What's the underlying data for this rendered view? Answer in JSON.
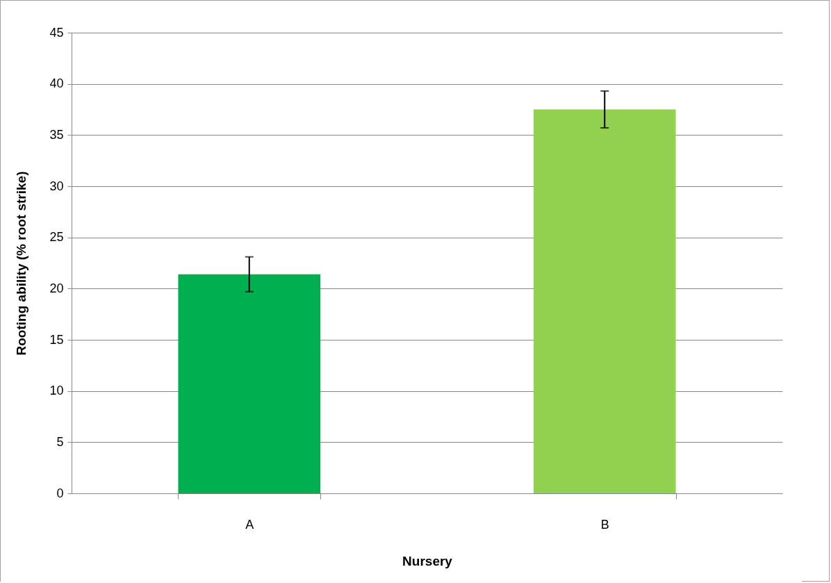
{
  "chart_data": {
    "type": "bar",
    "xlabel": "Nursery",
    "ylabel": "Rooting ability (% root strike)",
    "categories": [
      "A",
      "B"
    ],
    "values": [
      21.4,
      37.5
    ],
    "colors": [
      "#00b050",
      "#92d050"
    ],
    "errors": [
      1.7,
      1.8
    ],
    "ylim": [
      0,
      45
    ],
    "yticks": [
      0,
      5,
      10,
      15,
      20,
      25,
      30,
      35,
      40,
      45
    ],
    "grid": "y"
  }
}
